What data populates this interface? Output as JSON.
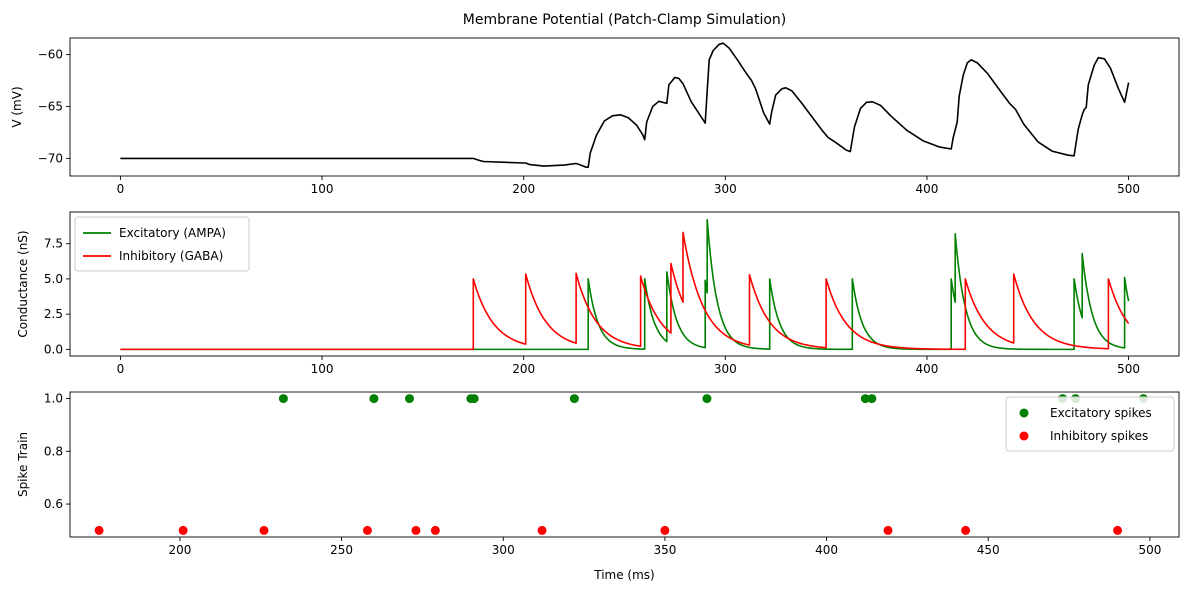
{
  "chart_data": [
    {
      "type": "line",
      "title": "Membrane Potential (Patch-Clamp Simulation)",
      "xlabel": "",
      "ylabel": "V (mV)",
      "xlim": [
        -25,
        525
      ],
      "ylim": [
        -71.7,
        -58.4
      ],
      "xticks": [
        0,
        100,
        200,
        300,
        400,
        500
      ],
      "yticks": [
        -70,
        -65,
        -60
      ],
      "grid": false,
      "legend": null,
      "series": [
        {
          "color": "#000000",
          "points": [
            [
              0,
              -70
            ],
            [
              175,
              -70
            ],
            [
              178,
              -70.2
            ],
            [
              180,
              -70.3
            ],
            [
              200,
              -70.45
            ],
            [
              201,
              -70.45
            ],
            [
              203,
              -70.6
            ],
            [
              210,
              -70.75
            ],
            [
              220,
              -70.65
            ],
            [
              226,
              -70.5
            ],
            [
              227,
              -70.55
            ],
            [
              229,
              -70.7
            ],
            [
              231,
              -70.85
            ],
            [
              232,
              -70.85
            ],
            [
              233,
              -69.5
            ],
            [
              236,
              -67.8
            ],
            [
              240,
              -66.4
            ],
            [
              244,
              -65.9
            ],
            [
              248,
              -65.8
            ],
            [
              252,
              -66.1
            ],
            [
              256,
              -66.8
            ],
            [
              259,
              -67.7
            ],
            [
              260,
              -68.2
            ],
            [
              261,
              -66.5
            ],
            [
              264,
              -65.0
            ],
            [
              267,
              -64.5
            ],
            [
              271,
              -64.7
            ],
            [
              272,
              -62.9
            ],
            [
              275,
              -62.2
            ],
            [
              277,
              -62.3
            ],
            [
              279,
              -62.8
            ],
            [
              283,
              -64.5
            ],
            [
              287,
              -65.7
            ],
            [
              290,
              -66.6
            ],
            [
              291,
              -63.5
            ],
            [
              292,
              -60.5
            ],
            [
              294,
              -59.6
            ],
            [
              297,
              -59.0
            ],
            [
              299,
              -58.9
            ],
            [
              302,
              -59.4
            ],
            [
              306,
              -60.5
            ],
            [
              310,
              -61.7
            ],
            [
              313,
              -62.5
            ],
            [
              315,
              -63.3
            ],
            [
              319,
              -65.6
            ],
            [
              322,
              -66.7
            ],
            [
              323,
              -65.5
            ],
            [
              325,
              -63.9
            ],
            [
              328,
              -63.3
            ],
            [
              330,
              -63.2
            ],
            [
              333,
              -63.5
            ],
            [
              338,
              -64.7
            ],
            [
              343,
              -66.0
            ],
            [
              348,
              -67.3
            ],
            [
              351,
              -68.0
            ],
            [
              355,
              -68.5
            ],
            [
              360,
              -69.2
            ],
            [
              362,
              -69.35
            ],
            [
              364,
              -67.0
            ],
            [
              367,
              -65.2
            ],
            [
              370,
              -64.6
            ],
            [
              373,
              -64.55
            ],
            [
              377,
              -64.9
            ],
            [
              382,
              -65.9
            ],
            [
              390,
              -67.3
            ],
            [
              398,
              -68.3
            ],
            [
              406,
              -68.9
            ],
            [
              412,
              -69.1
            ],
            [
              413,
              -68.0
            ],
            [
              415,
              -66.5
            ],
            [
              416,
              -64.0
            ],
            [
              418,
              -62.0
            ],
            [
              420,
              -60.8
            ],
            [
              422,
              -60.5
            ],
            [
              425,
              -60.8
            ],
            [
              430,
              -61.8
            ],
            [
              436,
              -63.4
            ],
            [
              441,
              -64.7
            ],
            [
              444,
              -65.3
            ],
            [
              448,
              -66.7
            ],
            [
              455,
              -68.4
            ],
            [
              462,
              -69.3
            ],
            [
              470,
              -69.7
            ],
            [
              473,
              -69.75
            ],
            [
              475,
              -67.2
            ],
            [
              477,
              -65.8
            ],
            [
              478,
              -65.3
            ],
            [
              479,
              -65.1
            ],
            [
              480,
              -62.9
            ],
            [
              483,
              -61.0
            ],
            [
              485,
              -60.3
            ],
            [
              488,
              -60.4
            ],
            [
              491,
              -61.3
            ],
            [
              495,
              -63.3
            ],
            [
              498,
              -64.6
            ],
            [
              500,
              -62.7
            ]
          ]
        }
      ]
    },
    {
      "type": "line",
      "title": "",
      "xlabel": "",
      "ylabel": "Conductance (nS)",
      "xlim": [
        -25,
        525
      ],
      "ylim": [
        -0.47,
        9.75
      ],
      "xticks": [
        0,
        100,
        200,
        300,
        400,
        500
      ],
      "yticks": [
        0.0,
        2.5,
        5.0,
        7.5
      ],
      "ytick_labels": [
        "0.0",
        "2.5",
        "5.0",
        "7.5"
      ],
      "grid": false,
      "legend": "top-left",
      "series": [
        {
          "name": "Excitatory (AMPA)",
          "color": "#008000",
          "tau": 5,
          "jumps": [
            [
              232,
              5.0
            ],
            [
              260,
              5.0
            ],
            [
              271,
              5.5
            ],
            [
              290,
              4.9
            ],
            [
              291,
              9.2
            ],
            [
              322,
              5.0
            ],
            [
              363,
              5.0
            ],
            [
              412,
              5.0
            ],
            [
              414,
              8.2
            ],
            [
              473,
              5.0
            ],
            [
              477,
              6.8
            ],
            [
              498,
              5.1
            ]
          ]
        },
        {
          "name": "Inhibitory (GABA)",
          "color": "#ff0000",
          "tau": 10,
          "jumps": [
            [
              175,
              5.0
            ],
            [
              201,
              5.35
            ],
            [
              226,
              5.4
            ],
            [
              258,
              5.2
            ],
            [
              273,
              6.1
            ],
            [
              279,
              8.3
            ],
            [
              312,
              5.3
            ],
            [
              350,
              5.0
            ],
            [
              419,
              5.0
            ],
            [
              443,
              5.35
            ],
            [
              490,
              5.0
            ]
          ]
        }
      ]
    },
    {
      "type": "scatter",
      "title": "",
      "xlabel": "Time (ms)",
      "ylabel": "Spike Train",
      "xlim": [
        166,
        509
      ],
      "ylim": [
        0.475,
        1.025
      ],
      "xticks": [
        200,
        250,
        300,
        350,
        400,
        450,
        500
      ],
      "yticks": [
        0.6,
        0.8,
        1.0
      ],
      "ytick_labels": [
        "0.6",
        "0.8",
        "1.0"
      ],
      "grid": false,
      "legend": "top-right",
      "series": [
        {
          "name": "Excitatory spikes",
          "color": "#008000",
          "y": 1.0,
          "x": [
            232,
            260,
            271,
            290,
            291,
            322,
            363,
            412,
            414,
            473,
            477,
            498
          ]
        },
        {
          "name": "Inhibitory spikes",
          "color": "#ff0000",
          "y": 0.5,
          "x": [
            175,
            201,
            226,
            258,
            273,
            279,
            312,
            350,
            419,
            443,
            490
          ]
        }
      ]
    }
  ]
}
